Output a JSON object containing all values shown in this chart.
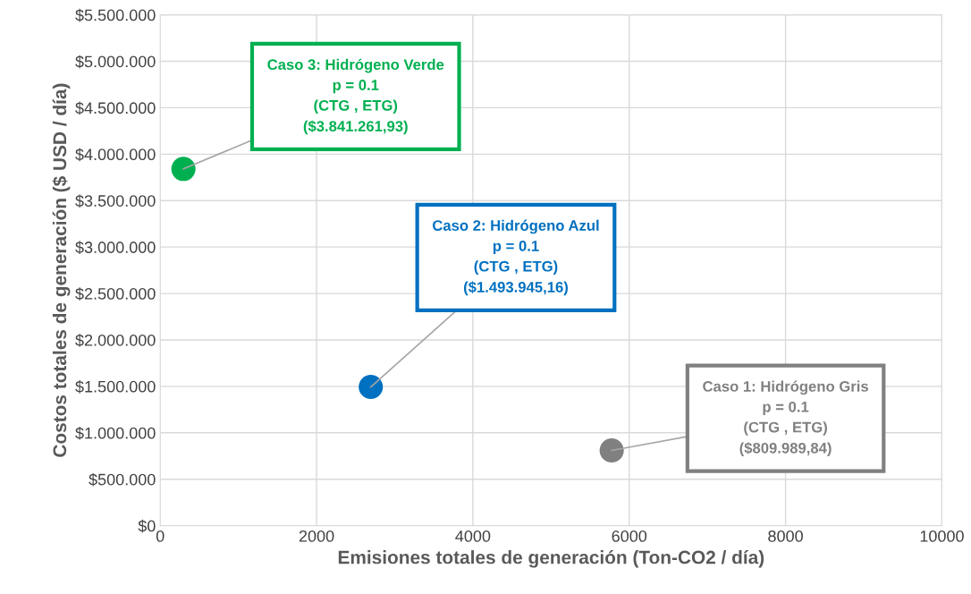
{
  "chart_data": {
    "type": "scatter",
    "xlabel": "Emisiones totales de generación (Ton-CO2 / día)",
    "ylabel": "Costos totales de generación ($ USD / día)",
    "series": [
      {
        "color": "#00b050",
        "x": [
          297
        ],
        "values": [
          3841261.93
        ]
      },
      {
        "color": "#0070c0",
        "x": [
          2694
        ],
        "values": [
          1493945.16
        ]
      },
      {
        "color": "#808080",
        "x": [
          5776
        ],
        "values": [
          809989.84
        ]
      }
    ],
    "annotations": [
      {
        "text": "Caso 3: Hidrógeno Verde\np = 0.1\n(CTG , ETG)\n($3.841.261,93)",
        "x": 297,
        "y": 3841261.93
      },
      {
        "text": "Caso 2: Hidrógeno Azul\np = 0.1\n(CTG , ETG)\n($1.493.945,16)",
        "x": 2694,
        "y": 1493945.16
      },
      {
        "text": "Caso 1: Hidrógeno Gris\np = 0.1\n(CTG , ETG)\n($809.989,84)",
        "x": 5776,
        "y": 809989.84
      }
    ],
    "xlim": [
      0,
      10000
    ],
    "xticks": [
      0,
      2000,
      4000,
      6000,
      8000,
      10000
    ],
    "ylim": [
      0,
      5500000
    ],
    "yticks": [
      {
        "value": 0,
        "label": "$0"
      },
      {
        "value": 500000,
        "label": "$500.000"
      },
      {
        "value": 1000000,
        "label": "$1.000.000"
      },
      {
        "value": 1500000,
        "label": "$1.500.000"
      },
      {
        "value": 2000000,
        "label": "$2.000.000"
      },
      {
        "value": 2500000,
        "label": "$2.500.000"
      },
      {
        "value": 3000000,
        "label": "$3.000.000"
      },
      {
        "value": 3500000,
        "label": "$3.500.000"
      },
      {
        "value": 4000000,
        "label": "$4.000.000"
      },
      {
        "value": 4500000,
        "label": "$4.500.000"
      },
      {
        "value": 5000000,
        "label": "$5.000.000"
      },
      {
        "value": 5500000,
        "label": "$5.500.000"
      }
    ],
    "grid": true,
    "marker": "circle",
    "legend": false
  }
}
